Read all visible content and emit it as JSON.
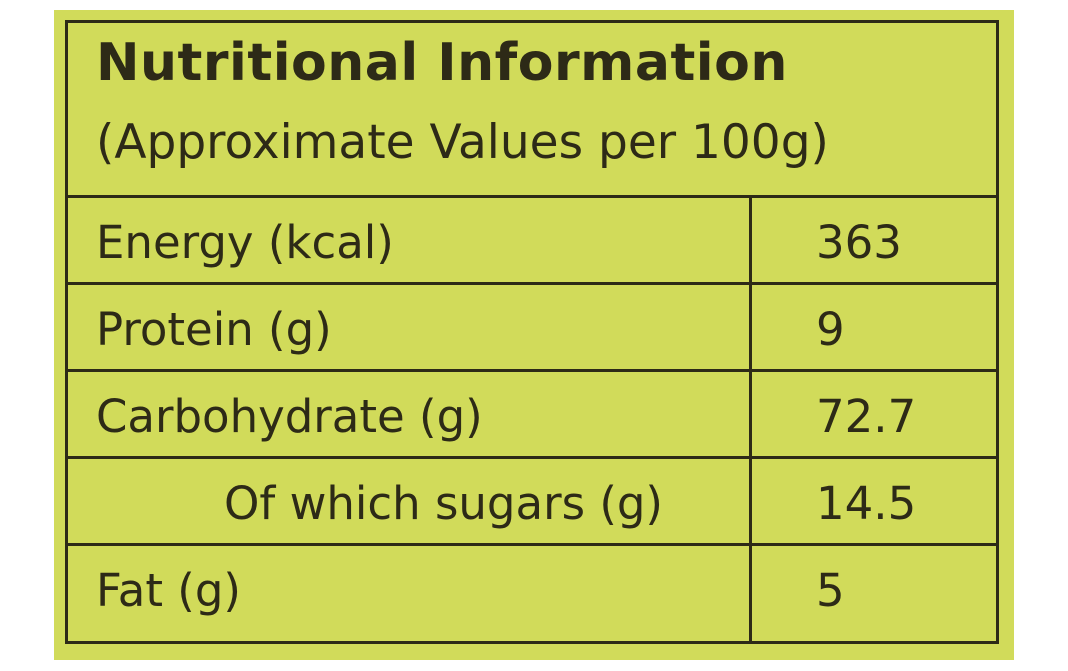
{
  "label": {
    "title": "Nutritional Information",
    "subtitle": "(Approximate Values per 100g)",
    "rows": [
      {
        "nutrient": "Energy (kcal)",
        "value": "363"
      },
      {
        "nutrient": "Protein (g)",
        "value": "9"
      },
      {
        "nutrient": "Carbohydrate (g)",
        "value": "72.7"
      },
      {
        "nutrient": "Of which sugars (g)",
        "value": "14.5"
      },
      {
        "nutrient": "Fat (g)",
        "value": "5"
      }
    ]
  },
  "colors": {
    "background": "#d1db5a",
    "ink": "#2d2a17"
  }
}
